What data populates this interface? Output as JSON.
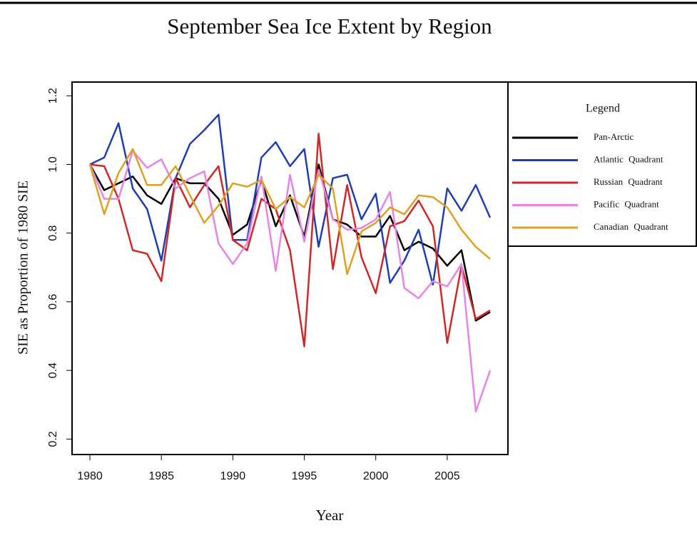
{
  "chart_data": {
    "type": "line",
    "title": "September Sea Ice Extent by Region",
    "x_label": "Year",
    "y_label": "SIE as Proportion of 1980 SIE",
    "legend_title": "Legend",
    "x": [
      1980,
      1981,
      1982,
      1983,
      1984,
      1985,
      1986,
      1987,
      1988,
      1989,
      1990,
      1991,
      1992,
      1993,
      1994,
      1995,
      1996,
      1997,
      1998,
      1999,
      2000,
      2001,
      2002,
      2003,
      2004,
      2005,
      2006,
      2007,
      2008
    ],
    "series": [
      {
        "name": "Pan-Arctic",
        "color": "#000000",
        "values": [
          1.0,
          0.925,
          0.945,
          0.965,
          0.91,
          0.885,
          0.96,
          0.945,
          0.945,
          0.9,
          0.795,
          0.825,
          0.955,
          0.82,
          0.91,
          0.79,
          1.0,
          0.84,
          0.825,
          0.79,
          0.79,
          0.85,
          0.75,
          0.775,
          0.755,
          0.705,
          0.75,
          0.545,
          0.57
        ]
      },
      {
        "name": "Atlantic Quadrant",
        "color": "#1f3fb0",
        "values": [
          1.0,
          1.02,
          1.12,
          0.93,
          0.87,
          0.72,
          0.96,
          1.06,
          1.1,
          1.145,
          0.78,
          0.78,
          1.02,
          1.065,
          0.995,
          1.045,
          0.76,
          0.96,
          0.97,
          0.84,
          0.915,
          0.655,
          0.72,
          0.81,
          0.65,
          0.93,
          0.865,
          0.94,
          0.845
        ]
      },
      {
        "name": "Russian Quadrant",
        "color": "#d02828",
        "values": [
          1.0,
          0.995,
          0.9,
          0.75,
          0.74,
          0.66,
          0.96,
          0.875,
          0.94,
          0.995,
          0.78,
          0.75,
          0.9,
          0.87,
          0.75,
          0.47,
          1.09,
          0.695,
          0.94,
          0.73,
          0.625,
          0.82,
          0.835,
          0.895,
          0.82,
          0.48,
          0.705,
          0.55,
          0.575
        ]
      },
      {
        "name": "Pacific Quadrant",
        "color": "#e884e8",
        "values": [
          1.0,
          0.9,
          0.9,
          1.04,
          0.99,
          1.015,
          0.93,
          0.96,
          0.98,
          0.77,
          0.71,
          0.77,
          0.965,
          0.69,
          0.97,
          0.775,
          0.985,
          0.84,
          0.81,
          0.815,
          0.84,
          0.92,
          0.64,
          0.61,
          0.66,
          0.645,
          0.71,
          0.28,
          0.4
        ]
      },
      {
        "name": "Canadian Quadrant",
        "color": "#e0a020",
        "values": [
          1.0,
          0.855,
          0.975,
          1.045,
          0.94,
          0.94,
          0.995,
          0.91,
          0.83,
          0.88,
          0.945,
          0.935,
          0.955,
          0.87,
          0.905,
          0.875,
          0.97,
          0.93,
          0.68,
          0.805,
          0.83,
          0.875,
          0.855,
          0.91,
          0.905,
          0.875,
          0.81,
          0.76,
          0.725
        ]
      }
    ],
    "xlim": [
      1978.75,
      2009.25
    ],
    "ylim": [
      0.155,
      1.24
    ],
    "xticks": [
      1980,
      1985,
      1990,
      1995,
      2000,
      2005
    ],
    "yticks": [
      0.2,
      0.4,
      0.6,
      0.8,
      {
        "value": 1,
        "label": "1.0"
      },
      1.2
    ]
  }
}
